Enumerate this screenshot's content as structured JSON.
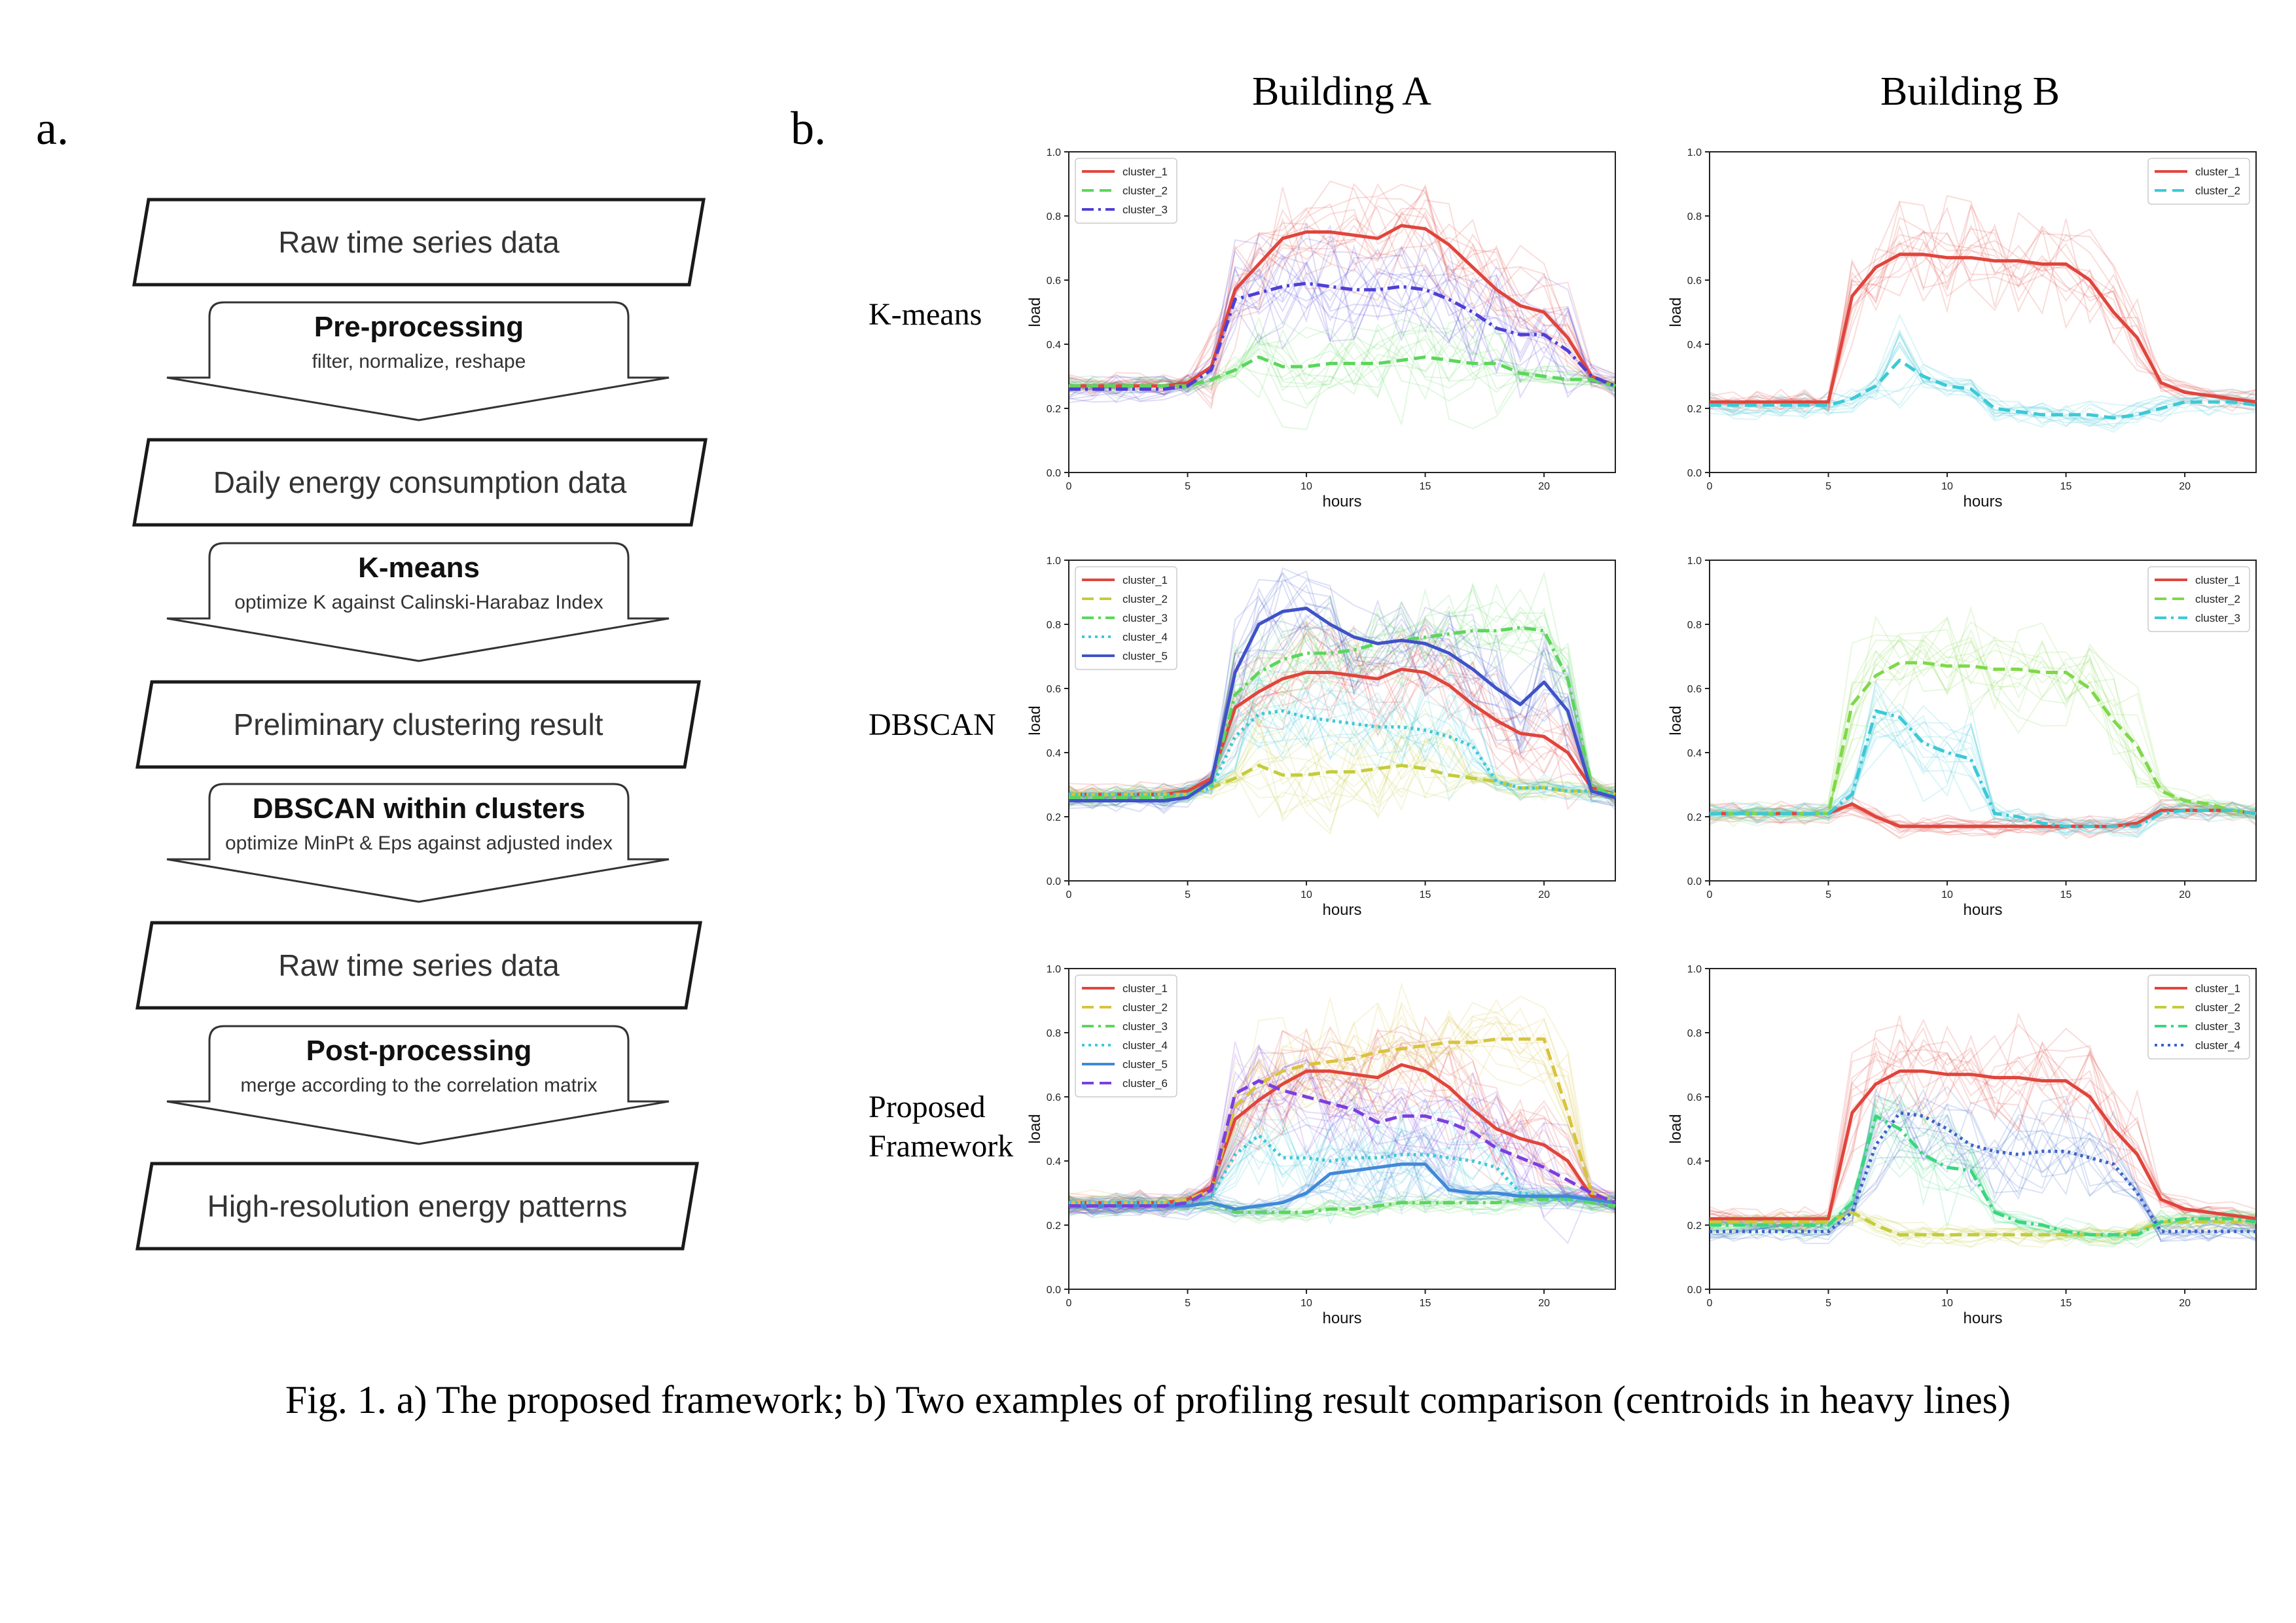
{
  "panel_a_label": "a.",
  "panel_b_label": "b.",
  "caption": "Fig. 1. a) The proposed framework; b) Two examples of profiling result comparison (centroids in heavy lines)",
  "column_headers": [
    "Building A",
    "Building B"
  ],
  "row_labels": [
    "K-means",
    "DBSCAN",
    "Proposed\nFramework"
  ],
  "flowchart": {
    "data_boxes": [
      "Raw time series data",
      "Daily energy consumption data",
      "Preliminary clustering result",
      "Raw time series data",
      "High-resolution energy patterns"
    ],
    "steps": [
      {
        "title": "Pre-processing",
        "subtitle": "filter, normalize, reshape"
      },
      {
        "title": "K-means",
        "subtitle": "optimize K against Calinski-Harabaz Index"
      },
      {
        "title": "DBSCAN within clusters",
        "subtitle": "optimize MinPt & Eps against adjusted index"
      },
      {
        "title": "Post-processing",
        "subtitle": "merge according to the correlation matrix"
      }
    ]
  },
  "colors": {
    "cluster_red": "#e0453c",
    "cluster_green": "#5cd65c",
    "cluster_yellowgreen": "#c4cc3c",
    "cluster_cyan": "#3dc9d6",
    "cluster_blue": "#3f6fd0",
    "cluster_purple": "#7a3fe0",
    "cluster_teal_green": "#3ad680",
    "cluster_mid_blue": "#4188d8",
    "cluster_dark_blue": "#3f52c8",
    "cluster_darkdot_blue": "#3a62c9",
    "cluster_yellow": "#d8c43c",
    "cluster_lime": "#7fd84a"
  },
  "chart_data": [
    {
      "type": "line",
      "building": "Building A",
      "method": "K-means",
      "xlabel": "hours",
      "ylabel": "load",
      "xlim": [
        0,
        23
      ],
      "ylim": [
        0,
        1
      ],
      "xticks": [
        0,
        5,
        10,
        15,
        20
      ],
      "yticks": [
        0.0,
        0.2,
        0.4,
        0.6,
        0.8,
        1.0
      ],
      "legend": "top-left",
      "x": [
        0,
        1,
        2,
        3,
        4,
        5,
        6,
        7,
        8,
        9,
        10,
        11,
        12,
        13,
        14,
        15,
        16,
        17,
        18,
        19,
        20,
        21,
        22,
        23
      ],
      "series": [
        {
          "name": "cluster_1",
          "color": "#e0453c",
          "dash": "solid",
          "values": [
            0.27,
            0.27,
            0.27,
            0.27,
            0.27,
            0.28,
            0.33,
            0.57,
            0.65,
            0.73,
            0.75,
            0.75,
            0.74,
            0.73,
            0.77,
            0.76,
            0.71,
            0.64,
            0.57,
            0.52,
            0.5,
            0.42,
            0.3,
            0.27
          ]
        },
        {
          "name": "cluster_2",
          "color": "#5cd65c",
          "dash": "dashed",
          "values": [
            0.27,
            0.27,
            0.27,
            0.27,
            0.27,
            0.27,
            0.29,
            0.32,
            0.36,
            0.33,
            0.33,
            0.34,
            0.34,
            0.34,
            0.35,
            0.36,
            0.35,
            0.34,
            0.34,
            0.31,
            0.3,
            0.29,
            0.29,
            0.27
          ]
        },
        {
          "name": "cluster_3",
          "color": "#4f3fd6",
          "dash": "dashdot",
          "values": [
            0.26,
            0.26,
            0.26,
            0.26,
            0.26,
            0.27,
            0.32,
            0.54,
            0.56,
            0.58,
            0.59,
            0.58,
            0.57,
            0.57,
            0.58,
            0.57,
            0.54,
            0.5,
            0.45,
            0.43,
            0.43,
            0.38,
            0.3,
            0.27
          ]
        }
      ]
    },
    {
      "type": "line",
      "building": "Building B",
      "method": "K-means",
      "xlabel": "hours",
      "ylabel": "load",
      "xlim": [
        0,
        23
      ],
      "ylim": [
        0,
        1
      ],
      "xticks": [
        0,
        5,
        10,
        15,
        20
      ],
      "yticks": [
        0.0,
        0.2,
        0.4,
        0.6,
        0.8,
        1.0
      ],
      "legend": "top-right",
      "x": [
        0,
        1,
        2,
        3,
        4,
        5,
        6,
        7,
        8,
        9,
        10,
        11,
        12,
        13,
        14,
        15,
        16,
        17,
        18,
        19,
        20,
        21,
        22,
        23
      ],
      "series": [
        {
          "name": "cluster_1",
          "color": "#e0453c",
          "dash": "solid",
          "values": [
            0.22,
            0.22,
            0.22,
            0.22,
            0.22,
            0.22,
            0.55,
            0.64,
            0.68,
            0.68,
            0.67,
            0.67,
            0.66,
            0.66,
            0.65,
            0.65,
            0.6,
            0.5,
            0.42,
            0.28,
            0.25,
            0.24,
            0.23,
            0.22
          ]
        },
        {
          "name": "cluster_2",
          "color": "#3dc9d6",
          "dash": "dashed",
          "values": [
            0.21,
            0.21,
            0.21,
            0.21,
            0.21,
            0.21,
            0.23,
            0.27,
            0.35,
            0.3,
            0.27,
            0.26,
            0.2,
            0.19,
            0.18,
            0.18,
            0.18,
            0.17,
            0.18,
            0.2,
            0.22,
            0.22,
            0.22,
            0.21
          ]
        }
      ]
    },
    {
      "type": "line",
      "building": "Building A",
      "method": "DBSCAN",
      "xlabel": "hours",
      "ylabel": "load",
      "xlim": [
        0,
        23
      ],
      "ylim": [
        0,
        1
      ],
      "xticks": [
        0,
        5,
        10,
        15,
        20
      ],
      "yticks": [
        0.0,
        0.2,
        0.4,
        0.6,
        0.8,
        1.0
      ],
      "legend": "top-left",
      "x": [
        0,
        1,
        2,
        3,
        4,
        5,
        6,
        7,
        8,
        9,
        10,
        11,
        12,
        13,
        14,
        15,
        16,
        17,
        18,
        19,
        20,
        21,
        22,
        23
      ],
      "series": [
        {
          "name": "cluster_1",
          "color": "#e0453c",
          "dash": "solid",
          "values": [
            0.27,
            0.27,
            0.27,
            0.27,
            0.27,
            0.28,
            0.32,
            0.54,
            0.59,
            0.63,
            0.65,
            0.65,
            0.64,
            0.63,
            0.66,
            0.65,
            0.61,
            0.55,
            0.5,
            0.46,
            0.45,
            0.4,
            0.29,
            0.27
          ]
        },
        {
          "name": "cluster_2",
          "color": "#c4cc3c",
          "dash": "dashed",
          "values": [
            0.27,
            0.27,
            0.27,
            0.27,
            0.27,
            0.27,
            0.29,
            0.32,
            0.36,
            0.33,
            0.33,
            0.34,
            0.34,
            0.35,
            0.36,
            0.35,
            0.33,
            0.32,
            0.31,
            0.29,
            0.29,
            0.28,
            0.28,
            0.27
          ]
        },
        {
          "name": "cluster_3",
          "color": "#5cd65c",
          "dash": "dashdot",
          "values": [
            0.26,
            0.26,
            0.26,
            0.26,
            0.26,
            0.27,
            0.3,
            0.58,
            0.65,
            0.69,
            0.71,
            0.71,
            0.72,
            0.74,
            0.75,
            0.76,
            0.77,
            0.78,
            0.78,
            0.79,
            0.78,
            0.63,
            0.3,
            0.26
          ]
        },
        {
          "name": "cluster_4",
          "color": "#3dc9d6",
          "dash": "dotted",
          "values": [
            0.27,
            0.27,
            0.27,
            0.27,
            0.27,
            0.27,
            0.29,
            0.45,
            0.52,
            0.53,
            0.51,
            0.5,
            0.49,
            0.48,
            0.48,
            0.47,
            0.45,
            0.42,
            0.31,
            0.29,
            0.29,
            0.28,
            0.28,
            0.27
          ]
        },
        {
          "name": "cluster_5",
          "color": "#3f52c8",
          "dash": "solid",
          "values": [
            0.25,
            0.25,
            0.25,
            0.25,
            0.25,
            0.26,
            0.31,
            0.65,
            0.8,
            0.84,
            0.85,
            0.8,
            0.76,
            0.74,
            0.75,
            0.74,
            0.71,
            0.66,
            0.6,
            0.55,
            0.62,
            0.53,
            0.28,
            0.26
          ]
        }
      ]
    },
    {
      "type": "line",
      "building": "Building B",
      "method": "DBSCAN",
      "xlabel": "hours",
      "ylabel": "load",
      "xlim": [
        0,
        23
      ],
      "ylim": [
        0,
        1
      ],
      "xticks": [
        0,
        5,
        10,
        15,
        20
      ],
      "yticks": [
        0.0,
        0.2,
        0.4,
        0.6,
        0.8,
        1.0
      ],
      "legend": "top-right",
      "x": [
        0,
        1,
        2,
        3,
        4,
        5,
        6,
        7,
        8,
        9,
        10,
        11,
        12,
        13,
        14,
        15,
        16,
        17,
        18,
        19,
        20,
        21,
        22,
        23
      ],
      "series": [
        {
          "name": "cluster_1",
          "color": "#e0453c",
          "dash": "solid",
          "values": [
            0.21,
            0.21,
            0.21,
            0.21,
            0.21,
            0.21,
            0.24,
            0.2,
            0.17,
            0.17,
            0.17,
            0.17,
            0.17,
            0.17,
            0.17,
            0.17,
            0.17,
            0.17,
            0.18,
            0.22,
            0.22,
            0.22,
            0.22,
            0.21
          ]
        },
        {
          "name": "cluster_2",
          "color": "#7fd84a",
          "dash": "dashed",
          "values": [
            0.21,
            0.21,
            0.21,
            0.21,
            0.21,
            0.21,
            0.55,
            0.64,
            0.68,
            0.68,
            0.67,
            0.67,
            0.66,
            0.66,
            0.65,
            0.65,
            0.6,
            0.5,
            0.42,
            0.28,
            0.25,
            0.24,
            0.22,
            0.21
          ]
        },
        {
          "name": "cluster_3",
          "color": "#3dc9d6",
          "dash": "dashdot",
          "values": [
            0.21,
            0.21,
            0.21,
            0.21,
            0.21,
            0.21,
            0.27,
            0.53,
            0.51,
            0.43,
            0.4,
            0.38,
            0.21,
            0.2,
            0.18,
            0.17,
            0.17,
            0.17,
            0.17,
            0.21,
            0.22,
            0.22,
            0.22,
            0.21
          ]
        }
      ]
    },
    {
      "type": "line",
      "building": "Building A",
      "method": "Proposed Framework",
      "xlabel": "hours",
      "ylabel": "load",
      "xlim": [
        0,
        23
      ],
      "ylim": [
        0,
        1
      ],
      "xticks": [
        0,
        5,
        10,
        15,
        20
      ],
      "yticks": [
        0.0,
        0.2,
        0.4,
        0.6,
        0.8,
        1.0
      ],
      "legend": "top-left",
      "x": [
        0,
        1,
        2,
        3,
        4,
        5,
        6,
        7,
        8,
        9,
        10,
        11,
        12,
        13,
        14,
        15,
        16,
        17,
        18,
        19,
        20,
        21,
        22,
        23
      ],
      "series": [
        {
          "name": "cluster_1",
          "color": "#e0453c",
          "dash": "solid",
          "values": [
            0.27,
            0.27,
            0.27,
            0.27,
            0.27,
            0.28,
            0.32,
            0.53,
            0.59,
            0.64,
            0.68,
            0.68,
            0.67,
            0.66,
            0.7,
            0.68,
            0.63,
            0.56,
            0.5,
            0.47,
            0.45,
            0.4,
            0.29,
            0.27
          ]
        },
        {
          "name": "cluster_2",
          "color": "#d8c43c",
          "dash": "dashed",
          "values": [
            0.27,
            0.27,
            0.27,
            0.27,
            0.27,
            0.28,
            0.31,
            0.57,
            0.64,
            0.68,
            0.7,
            0.71,
            0.72,
            0.74,
            0.75,
            0.76,
            0.77,
            0.77,
            0.78,
            0.78,
            0.78,
            0.55,
            0.3,
            0.27
          ]
        },
        {
          "name": "cluster_3",
          "color": "#5cd65c",
          "dash": "dashdot",
          "values": [
            0.26,
            0.26,
            0.26,
            0.26,
            0.26,
            0.26,
            0.27,
            0.24,
            0.24,
            0.24,
            0.24,
            0.25,
            0.25,
            0.26,
            0.27,
            0.27,
            0.27,
            0.27,
            0.27,
            0.28,
            0.28,
            0.28,
            0.27,
            0.26
          ]
        },
        {
          "name": "cluster_4",
          "color": "#3dc9d6",
          "dash": "dotted",
          "values": [
            0.27,
            0.27,
            0.27,
            0.27,
            0.27,
            0.27,
            0.29,
            0.42,
            0.48,
            0.41,
            0.41,
            0.4,
            0.41,
            0.41,
            0.42,
            0.42,
            0.41,
            0.4,
            0.38,
            0.3,
            0.29,
            0.28,
            0.28,
            0.27
          ]
        },
        {
          "name": "cluster_5",
          "color": "#4188d8",
          "dash": "solid",
          "values": [
            0.26,
            0.26,
            0.26,
            0.26,
            0.26,
            0.26,
            0.27,
            0.25,
            0.26,
            0.27,
            0.3,
            0.36,
            0.37,
            0.38,
            0.39,
            0.39,
            0.31,
            0.3,
            0.3,
            0.29,
            0.29,
            0.29,
            0.28,
            0.27
          ]
        },
        {
          "name": "cluster_6",
          "color": "#7a3fe0",
          "dash": "dashed",
          "values": [
            0.26,
            0.26,
            0.26,
            0.26,
            0.26,
            0.27,
            0.31,
            0.61,
            0.65,
            0.62,
            0.6,
            0.58,
            0.56,
            0.52,
            0.54,
            0.54,
            0.52,
            0.49,
            0.44,
            0.41,
            0.38,
            0.34,
            0.3,
            0.27
          ]
        }
      ]
    },
    {
      "type": "line",
      "building": "Building B",
      "method": "Proposed Framework",
      "xlabel": "hours",
      "ylabel": "load",
      "xlim": [
        0,
        23
      ],
      "ylim": [
        0,
        1
      ],
      "xticks": [
        0,
        5,
        10,
        15,
        20
      ],
      "yticks": [
        0.0,
        0.2,
        0.4,
        0.6,
        0.8,
        1.0
      ],
      "legend": "top-right",
      "x": [
        0,
        1,
        2,
        3,
        4,
        5,
        6,
        7,
        8,
        9,
        10,
        11,
        12,
        13,
        14,
        15,
        16,
        17,
        18,
        19,
        20,
        21,
        22,
        23
      ],
      "series": [
        {
          "name": "cluster_1",
          "color": "#e0453c",
          "dash": "solid",
          "values": [
            0.22,
            0.22,
            0.22,
            0.22,
            0.22,
            0.22,
            0.55,
            0.64,
            0.68,
            0.68,
            0.67,
            0.67,
            0.66,
            0.66,
            0.65,
            0.65,
            0.6,
            0.5,
            0.42,
            0.28,
            0.25,
            0.24,
            0.23,
            0.22
          ]
        },
        {
          "name": "cluster_2",
          "color": "#c4cc3c",
          "dash": "dashed",
          "values": [
            0.21,
            0.21,
            0.21,
            0.21,
            0.21,
            0.21,
            0.24,
            0.2,
            0.17,
            0.17,
            0.17,
            0.17,
            0.17,
            0.17,
            0.17,
            0.17,
            0.17,
            0.17,
            0.18,
            0.21,
            0.21,
            0.21,
            0.21,
            0.21
          ]
        },
        {
          "name": "cluster_3",
          "color": "#3ad680",
          "dash": "dashdot",
          "values": [
            0.2,
            0.2,
            0.2,
            0.2,
            0.2,
            0.2,
            0.27,
            0.54,
            0.5,
            0.42,
            0.38,
            0.37,
            0.24,
            0.21,
            0.2,
            0.18,
            0.17,
            0.17,
            0.17,
            0.21,
            0.22,
            0.22,
            0.22,
            0.21
          ]
        },
        {
          "name": "cluster_4",
          "color": "#3a62c9",
          "dash": "dotted",
          "values": [
            0.18,
            0.18,
            0.18,
            0.18,
            0.18,
            0.18,
            0.24,
            0.45,
            0.55,
            0.54,
            0.5,
            0.45,
            0.43,
            0.42,
            0.43,
            0.43,
            0.41,
            0.39,
            0.3,
            0.18,
            0.18,
            0.18,
            0.18,
            0.18
          ]
        }
      ]
    }
  ]
}
